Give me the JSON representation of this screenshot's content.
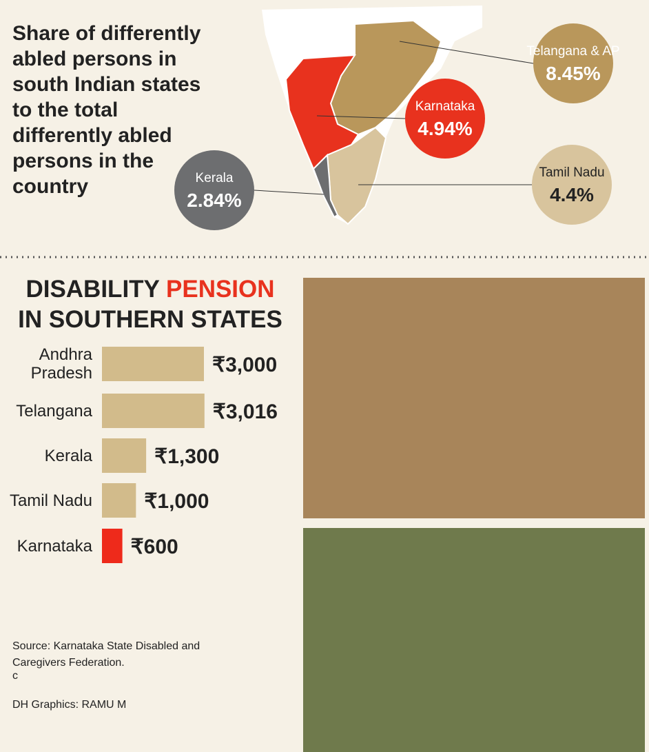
{
  "chart_data": [
    {
      "type": "map",
      "title": "Share of differently abled persons in south Indian states to the total differently abled persons in the country",
      "categories": [
        "Telangana & AP",
        "Karnataka",
        "Kerala",
        "Tamil Nadu"
      ],
      "values": [
        8.45,
        4.94,
        2.84,
        4.4
      ],
      "value_labels": [
        "8.45%",
        "4.94%",
        "2.84%",
        "4.4%"
      ],
      "colors": [
        "#b9975b",
        "#e8321e",
        "#6d6e70",
        "#d8c49d"
      ]
    },
    {
      "type": "bar",
      "title": [
        "DISABILITY",
        "PENSION",
        "IN SOUTHERN STATES"
      ],
      "categories": [
        "Andhra Pradesh",
        "Telangana",
        "Kerala",
        "Tamil Nadu",
        "Karnataka"
      ],
      "values": [
        3000,
        3016,
        1300,
        1000,
        600
      ],
      "value_labels": [
        "₹3,000",
        "₹3,016",
        "₹1,300",
        "₹1,000",
        "₹600"
      ],
      "colors": [
        "#d2bb8b",
        "#d2bb8b",
        "#d2bb8b",
        "#d2bb8b",
        "#ee2a1b"
      ]
    }
  ],
  "source": "Source: Karnataka State Disabled and Caregivers Federation.",
  "note": "c",
  "credit": "DH Graphics: RAMU M"
}
